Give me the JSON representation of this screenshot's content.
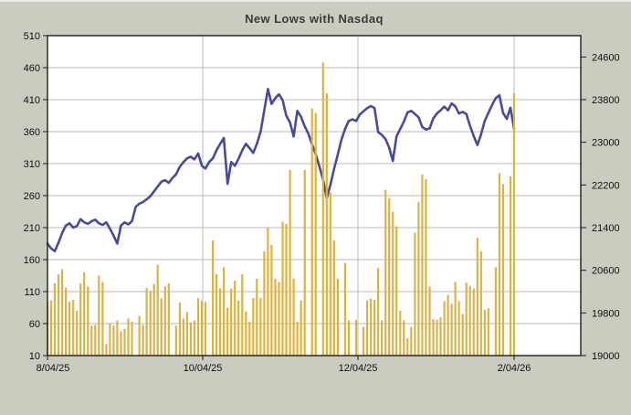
{
  "window": {
    "background": "#c9cdc0",
    "plot_background": "#ffffff",
    "grid_color": "#b9b9b9",
    "axis_color": "#1c1c1c",
    "label_color": "#111111",
    "title_color": "#3b3b3b"
  },
  "chart_data": {
    "type": "bar",
    "title": "New Lows with Nasdaq",
    "grid": true,
    "legend_position": "none",
    "series": [
      {
        "name": "New Lows",
        "type": "bar",
        "axis": "left",
        "color": "#d9b441",
        "values": [
          94,
          96,
          123,
          137,
          145,
          116,
          94,
          97,
          80,
          123,
          140,
          118,
          57,
          58,
          135,
          125,
          28,
          60,
          57,
          65,
          48,
          52,
          68,
          63,
          0,
          72,
          58,
          116,
          111,
          122,
          152,
          100,
          118,
          123,
          0,
          57,
          93,
          68,
          78,
          62,
          65,
          100,
          96,
          94,
          0,
          190,
          137,
          115,
          148,
          85,
          115,
          127,
          96,
          137,
          79,
          63,
          100,
          130,
          100,
          173,
          210,
          183,
          130,
          125,
          219,
          216,
          300,
          130,
          63,
          96,
          300,
          0,
          396,
          389,
          0,
          468,
          420,
          265,
          190,
          130,
          0,
          155,
          65,
          0,
          66,
          0,
          55,
          96,
          99,
          97,
          147,
          65,
          269,
          256,
          235,
          212,
          80,
          65,
          37,
          55,
          202,
          250,
          293,
          286,
          118,
          67,
          66,
          70,
          95,
          105,
          91,
          125,
          95,
          75,
          124,
          119,
          115,
          194,
          173,
          82,
          84,
          0,
          148,
          295,
          278,
          0,
          290,
          420
        ]
      },
      {
        "name": "Nasdaq",
        "type": "line",
        "axis": "right",
        "color": "#4a4a96",
        "values": [
          21100,
          21010,
          20960,
          21120,
          21300,
          21440,
          21480,
          21400,
          21430,
          21560,
          21500,
          21470,
          21520,
          21550,
          21480,
          21450,
          21500,
          21380,
          21250,
          21100,
          21440,
          21500,
          21460,
          21520,
          21790,
          21850,
          21880,
          21930,
          21990,
          22080,
          22170,
          22260,
          22290,
          22240,
          22330,
          22400,
          22540,
          22630,
          22700,
          22730,
          22680,
          22790,
          22560,
          22510,
          22630,
          22700,
          22850,
          22970,
          23080,
          22220,
          22630,
          22560,
          22690,
          22850,
          22970,
          22890,
          22800,
          22970,
          23200,
          23600,
          24000,
          23720,
          23830,
          23900,
          23790,
          23500,
          23370,
          23110,
          23590,
          23480,
          23300,
          23160,
          22960,
          22780,
          22550,
          22300,
          21950,
          22200,
          22500,
          22770,
          23050,
          23250,
          23400,
          23430,
          23400,
          23520,
          23580,
          23640,
          23680,
          23640,
          23190,
          23140,
          23060,
          22900,
          22650,
          23110,
          23250,
          23390,
          23560,
          23590,
          23530,
          23470,
          23290,
          23240,
          23260,
          23450,
          23540,
          23600,
          23670,
          23600,
          23730,
          23675,
          23540,
          23570,
          23530,
          23310,
          23120,
          22950,
          23150,
          23400,
          23550,
          23700,
          23830,
          23880,
          23550,
          23440,
          23650,
          23250
        ]
      }
    ],
    "left_axis": {
      "min": 10,
      "max": 510,
      "step": 50,
      "ticks": [
        510,
        460,
        410,
        360,
        310,
        260,
        210,
        160,
        110,
        60,
        10
      ]
    },
    "right_axis": {
      "min": 19000,
      "max": 25000,
      "step": 800,
      "ticks": [
        24600,
        23800,
        23000,
        22200,
        21400,
        20600,
        19800,
        19000
      ]
    },
    "x_axis": {
      "ticks": [
        {
          "label": "8/04/25",
          "day": 0
        },
        {
          "label": "10/04/25",
          "day": 42.25
        },
        {
          "label": "12/04/25",
          "day": 84.5
        },
        {
          "label": "2/04/26",
          "day": 127
        }
      ]
    }
  }
}
